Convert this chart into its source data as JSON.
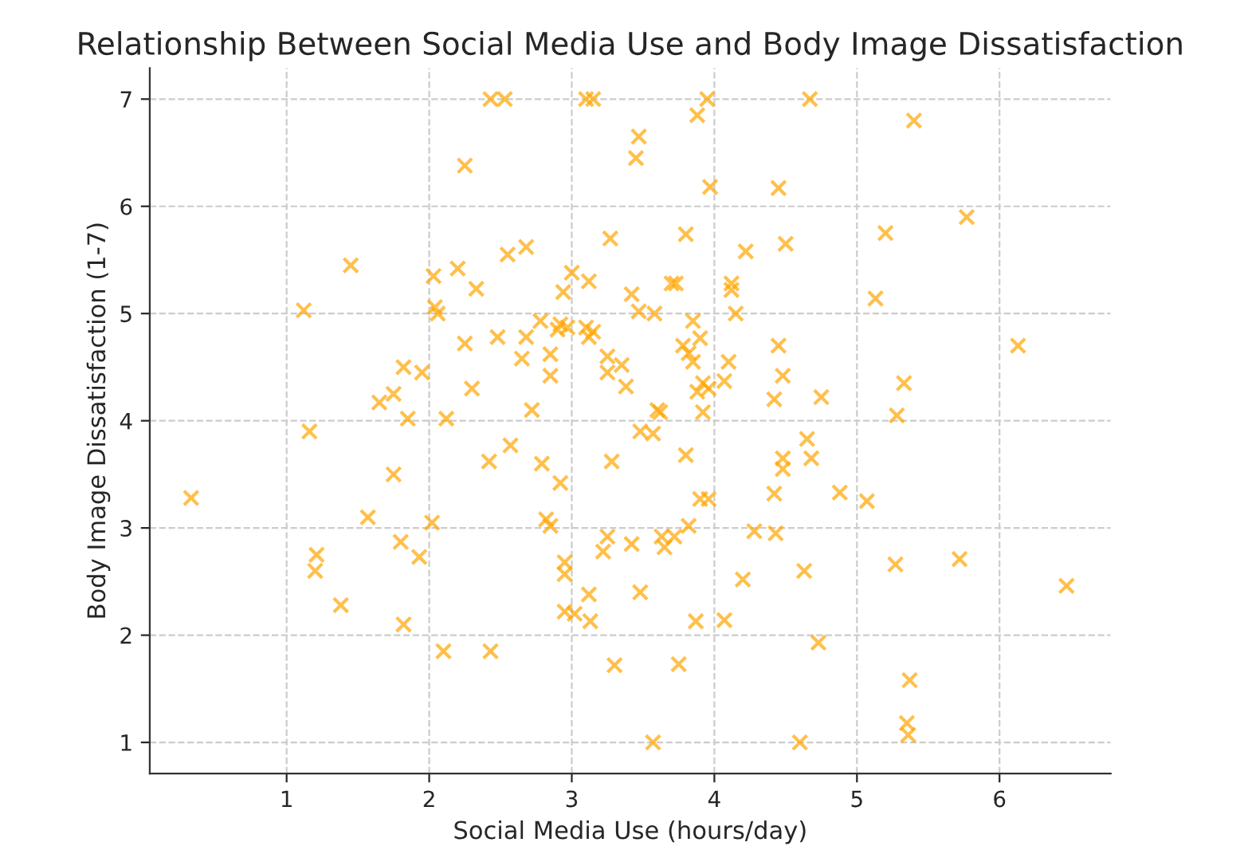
{
  "chart_data": {
    "type": "scatter",
    "title": "Relationship Between Social Media Use and Body Image Dissatisfaction",
    "xlabel": "Social Media Use (hours/day)",
    "ylabel": "Body Image Dissatisfaction (1-7)",
    "marker": "cross",
    "grid": true,
    "xlim": [
      0.04,
      6.78
    ],
    "ylim": [
      0.71,
      7.29
    ],
    "xticks": [
      1,
      2,
      3,
      4,
      5,
      6
    ],
    "yticks": [
      1,
      2,
      3,
      4,
      5,
      6,
      7
    ],
    "series": [
      {
        "color": "#ffa500",
        "x": [
          2.43,
          2.53,
          3.1,
          3.15,
          3.95,
          4.67,
          3.88,
          5.4,
          3.47,
          3.45,
          2.25,
          3.97,
          4.45,
          5.77,
          5.2,
          3.8,
          3.27,
          4.5,
          2.68,
          4.22,
          2.55,
          1.45,
          2.2,
          2.03,
          3.0,
          3.12,
          3.7,
          3.73,
          4.12,
          4.12,
          2.33,
          2.94,
          3.42,
          5.13,
          2.04,
          2.06,
          1.12,
          3.47,
          3.58,
          4.15,
          3.85,
          2.78,
          2.92,
          2.97,
          3.1,
          3.15,
          2.48,
          2.68,
          2.9,
          3.12,
          3.9,
          2.25,
          3.78,
          4.45,
          3.82,
          6.13,
          2.85,
          3.25,
          3.85,
          4.1,
          2.65,
          1.65,
          1.82,
          1.95,
          3.25,
          2.85,
          3.35,
          3.92,
          3.96,
          4.07,
          3.38,
          3.88,
          2.3,
          1.75,
          1.16,
          1.85,
          2.12,
          2.72,
          3.6,
          3.62,
          3.92,
          4.48,
          4.42,
          4.75,
          5.33,
          5.28,
          3.48,
          3.57,
          2.57,
          4.65,
          2.42,
          2.79,
          3.28,
          3.8,
          4.68,
          4.48,
          4.48,
          1.75,
          2.92,
          0.33,
          4.88,
          5.07,
          4.42,
          3.9,
          3.96,
          1.57,
          2.02,
          2.82,
          2.85,
          3.82,
          3.63,
          3.65,
          3.72,
          3.25,
          3.22,
          3.42,
          4.28,
          4.43,
          1.21,
          1.2,
          1.8,
          1.93,
          2.95,
          2.95,
          4.63,
          4.2,
          5.27,
          5.72,
          6.47,
          1.38,
          2.95,
          3.02,
          3.12,
          3.13,
          3.48,
          3.87,
          4.07,
          1.82,
          2.1,
          2.43,
          3.3,
          3.75,
          4.73,
          5.37,
          5.35,
          5.36,
          3.57,
          4.6
        ],
        "values": [
          7.0,
          7.0,
          7.0,
          7.0,
          7.0,
          7.0,
          6.85,
          6.8,
          6.65,
          6.45,
          6.38,
          6.18,
          6.17,
          5.9,
          5.75,
          5.74,
          5.7,
          5.65,
          5.62,
          5.58,
          5.55,
          5.45,
          5.42,
          5.35,
          5.38,
          5.3,
          5.28,
          5.28,
          5.28,
          5.22,
          5.23,
          5.2,
          5.18,
          5.14,
          5.06,
          5.0,
          5.03,
          5.02,
          5.0,
          5.0,
          4.93,
          4.93,
          4.9,
          4.87,
          4.87,
          4.83,
          4.78,
          4.78,
          4.85,
          4.78,
          4.77,
          4.72,
          4.7,
          4.7,
          4.63,
          4.7,
          4.62,
          4.6,
          4.55,
          4.55,
          4.58,
          4.17,
          4.5,
          4.45,
          4.45,
          4.42,
          4.52,
          4.35,
          4.3,
          4.37,
          4.32,
          4.27,
          4.3,
          4.25,
          3.9,
          4.02,
          4.02,
          4.1,
          4.1,
          4.08,
          4.08,
          4.42,
          4.2,
          4.22,
          4.35,
          4.05,
          3.9,
          3.88,
          3.77,
          3.83,
          3.62,
          3.6,
          3.62,
          3.68,
          3.65,
          3.65,
          3.55,
          3.5,
          3.42,
          3.28,
          3.33,
          3.25,
          3.32,
          3.27,
          3.27,
          3.1,
          3.05,
          3.08,
          3.02,
          3.02,
          2.92,
          2.82,
          2.92,
          2.92,
          2.78,
          2.85,
          2.97,
          2.95,
          2.75,
          2.6,
          2.87,
          2.73,
          2.68,
          2.57,
          2.6,
          2.52,
          2.66,
          2.71,
          2.46,
          2.28,
          2.22,
          2.2,
          2.38,
          2.13,
          2.4,
          2.13,
          2.14,
          2.1,
          1.85,
          1.85,
          1.72,
          1.73,
          1.93,
          1.58,
          1.18,
          1.07,
          1.0,
          1.0
        ]
      }
    ]
  }
}
